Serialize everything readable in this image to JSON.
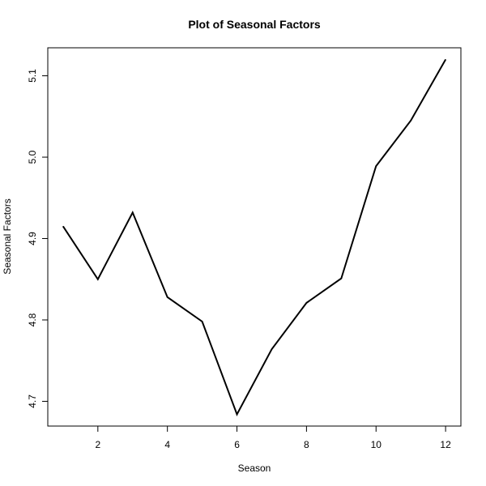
{
  "chart_data": {
    "type": "line",
    "title": "Plot of Seasonal Factors",
    "xlabel": "Season",
    "ylabel": "Seasonal Factors",
    "x": [
      1,
      2,
      3,
      4,
      5,
      6,
      7,
      8,
      9,
      10,
      11,
      12
    ],
    "series": [
      {
        "values": [
          4.915,
          4.85,
          4.932,
          4.828,
          4.798,
          4.684,
          4.764,
          4.821,
          4.851,
          4.989,
          5.045,
          5.12
        ]
      }
    ],
    "xlim": [
      0.56,
      12.44
    ],
    "ylim": [
      4.6696,
      5.1344
    ],
    "xticks": [
      2,
      4,
      6,
      8,
      10,
      12
    ],
    "xtick_labels": [
      "2",
      "4",
      "6",
      "8",
      "10",
      "12"
    ],
    "yticks": [
      4.7,
      4.8,
      4.9,
      5.0,
      5.1
    ],
    "ytick_labels": [
      "4.7",
      "4.8",
      "4.9",
      "5.0",
      "5.1"
    ],
    "grid": false,
    "line_color": "#000000"
  }
}
